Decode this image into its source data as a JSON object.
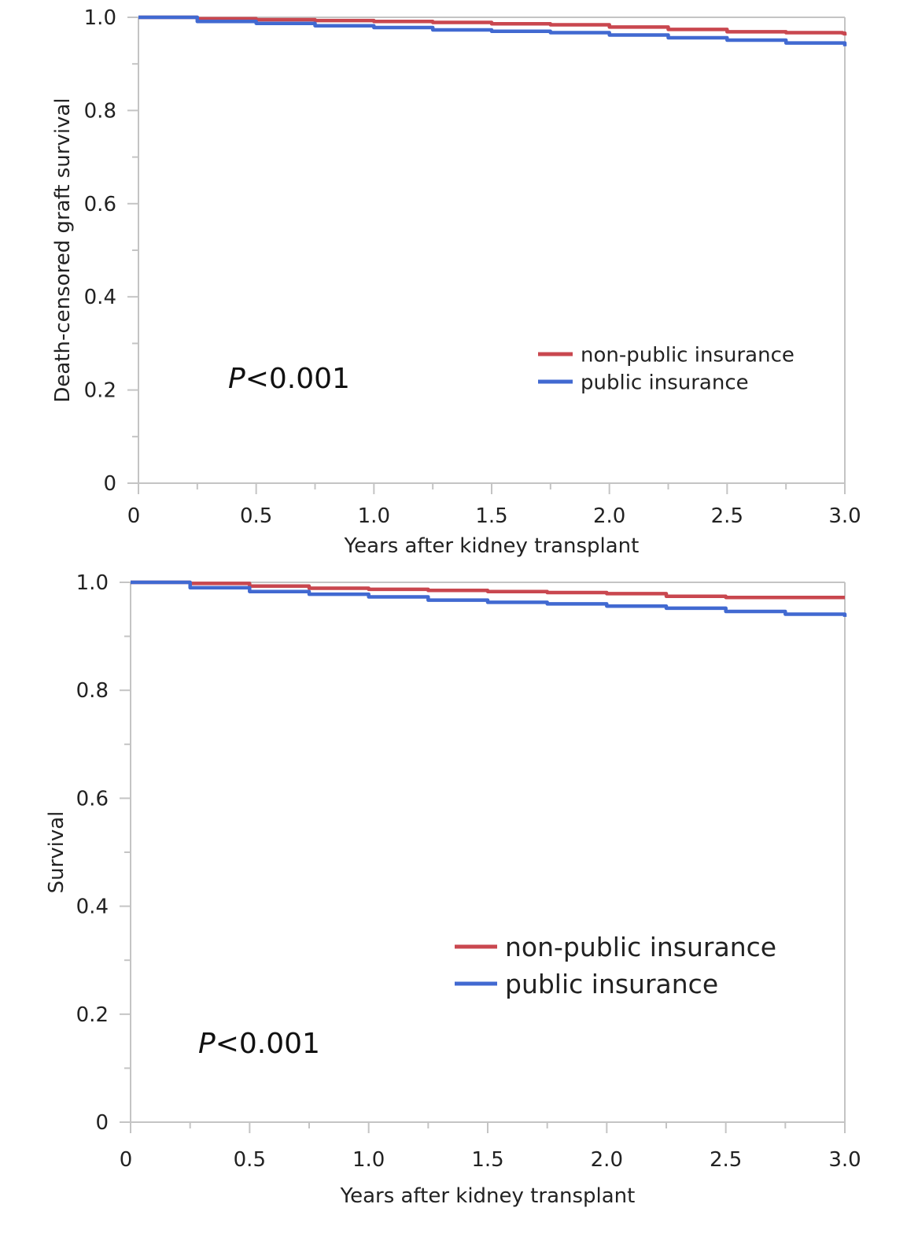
{
  "colors": {
    "non_public": "#c9474f",
    "public": "#4169d1",
    "axis": "#c4c4c4"
  },
  "chart_data": [
    {
      "type": "line",
      "title": "",
      "xlabel": "Years after kidney transplant",
      "ylabel": "Death-censored graft survival",
      "xlim": [
        0,
        3.0
      ],
      "ylim": [
        0,
        1.0
      ],
      "xticks": [
        "0",
        "0.5",
        "1.0",
        "1.5",
        "2.0",
        "2.5",
        "3.0"
      ],
      "yticks": [
        "0",
        "0.2",
        "0.4",
        "0.6",
        "0.8",
        "1.0"
      ],
      "annotation": {
        "italic": "P",
        "rest": "<0.001"
      },
      "legend": [
        "non-public insurance",
        "public insurance"
      ],
      "series": [
        {
          "name": "non-public insurance",
          "color": "#c9474f",
          "x": [
            0,
            0.25,
            0.5,
            0.75,
            1.0,
            1.25,
            1.5,
            1.75,
            2.0,
            2.25,
            2.5,
            2.75,
            2.99,
            3.0
          ],
          "y": [
            1.0,
            0.997,
            0.995,
            0.993,
            0.991,
            0.989,
            0.986,
            0.984,
            0.979,
            0.974,
            0.969,
            0.967,
            0.966,
            0.961
          ]
        },
        {
          "name": "public insurance",
          "color": "#4169d1",
          "x": [
            0,
            0.25,
            0.5,
            0.75,
            1.0,
            1.25,
            1.5,
            1.75,
            2.0,
            2.25,
            2.5,
            2.75,
            3.0
          ],
          "y": [
            1.0,
            0.991,
            0.987,
            0.982,
            0.978,
            0.973,
            0.97,
            0.967,
            0.962,
            0.956,
            0.951,
            0.945,
            0.938
          ]
        }
      ]
    },
    {
      "type": "line",
      "title": "",
      "xlabel": "Years after kidney transplant",
      "ylabel": "Survival",
      "xlim": [
        0,
        3.0
      ],
      "ylim": [
        0,
        1.0
      ],
      "xticks": [
        "0",
        "0.5",
        "1.0",
        "1.5",
        "2.0",
        "2.5",
        "3.0"
      ],
      "yticks": [
        "0",
        "0.2",
        "0.4",
        "0.6",
        "0.8",
        "1.0"
      ],
      "annotation": {
        "italic": "P",
        "rest": "<0.001"
      },
      "legend": [
        "non-public insurance",
        "public insurance"
      ],
      "series": [
        {
          "name": "non-public insurance",
          "color": "#c9474f",
          "x": [
            0,
            0.25,
            0.5,
            0.75,
            1.0,
            1.25,
            1.5,
            1.75,
            2.0,
            2.25,
            2.5,
            2.75,
            3.0
          ],
          "y": [
            1.0,
            0.998,
            0.993,
            0.989,
            0.987,
            0.985,
            0.983,
            0.981,
            0.979,
            0.974,
            0.972,
            0.972,
            0.972
          ]
        },
        {
          "name": "public insurance",
          "color": "#4169d1",
          "x": [
            0,
            0.25,
            0.5,
            0.75,
            1.0,
            1.25,
            1.5,
            1.75,
            2.0,
            2.25,
            2.5,
            2.75,
            3.0
          ],
          "y": [
            1.0,
            0.99,
            0.983,
            0.978,
            0.973,
            0.967,
            0.963,
            0.96,
            0.956,
            0.952,
            0.946,
            0.941,
            0.936
          ]
        }
      ]
    }
  ]
}
